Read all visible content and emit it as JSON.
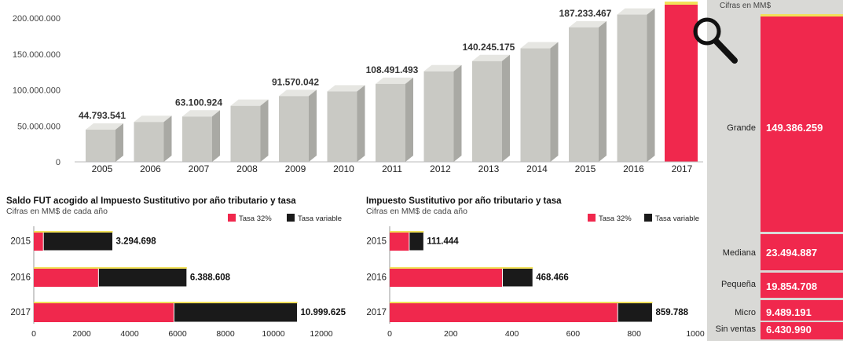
{
  "colors": {
    "red": "#f0284d",
    "black": "#1a1a1a",
    "gray_bar": "#c9c9c4",
    "panel_bg": "#d9d9d6",
    "highlight": "#f2e15a"
  },
  "icons": {
    "magnifier": "magnifier-icon"
  },
  "chart_data": [
    {
      "type": "bar",
      "categories": [
        "2005",
        "2006",
        "2007",
        "2008",
        "2009",
        "2010",
        "2011",
        "2012",
        "2013",
        "2014",
        "2015",
        "2016",
        "2017"
      ],
      "values": [
        44793541,
        55500000,
        63100924,
        78000000,
        91570042,
        98000000,
        108491493,
        126000000,
        140245175,
        158000000,
        187233467,
        205000000,
        210000000
      ],
      "data_labels": [
        {
          "category": "2005",
          "text": "44.793.541"
        },
        {
          "category": "2007",
          "text": "63.100.924"
        },
        {
          "category": "2009",
          "text": "91.570.042"
        },
        {
          "category": "2011",
          "text": "108.491.493"
        },
        {
          "category": "2013",
          "text": "140.245.175"
        },
        {
          "category": "2015",
          "text": "187.233.467"
        }
      ],
      "highlight_category": "2017",
      "yticks": [
        "0",
        "50.000.000",
        "100.000.000",
        "150.000.000",
        "200.000.000"
      ],
      "ylim": [
        0,
        210000000
      ]
    },
    {
      "type": "bar",
      "orientation": "horizontal",
      "subtitle": "Cifras en MM$",
      "categories": [
        "Grande",
        "Mediana",
        "Pequeña",
        "Micro",
        "Sin ventas"
      ],
      "values": [
        149386259,
        23494887,
        19854708,
        9489191,
        6430990
      ],
      "value_labels": [
        "149.386.259",
        "23.494.887",
        "19.854.708",
        "9.489.191",
        "6.430.990"
      ]
    },
    {
      "type": "bar",
      "stacked": true,
      "orientation": "horizontal",
      "title": "Saldo FUT acogido al Impuesto Sustitutivo por año tributario y tasa",
      "subtitle": "Cifras en MM$ de cada año",
      "categories": [
        "2015",
        "2016",
        "2017"
      ],
      "series": [
        {
          "name": "Tasa 32%",
          "values": [
            400,
            2700,
            5850
          ]
        },
        {
          "name": "Tasa variable",
          "values": [
            2894.698,
            3688.608,
            5149.625
          ]
        }
      ],
      "totals": [
        "3.294.698",
        "6.388.608",
        "10.999.625"
      ],
      "xticks": [
        "0",
        "2000",
        "4000",
        "6000",
        "8000",
        "10000",
        "12000"
      ],
      "xlim": [
        0,
        12000
      ]
    },
    {
      "type": "bar",
      "stacked": true,
      "orientation": "horizontal",
      "title": "Impuesto Sustitutivo por año tributario y tasa",
      "subtitle": "Cifras en MM$ de cada año",
      "categories": [
        "2015",
        "2016",
        "2017"
      ],
      "series": [
        {
          "name": "Tasa 32%",
          "values": [
            64,
            369,
            746
          ]
        },
        {
          "name": "Tasa variable",
          "values": [
            47.444,
            99.466,
            113.788
          ]
        }
      ],
      "totals": [
        "111.444",
        "468.466",
        "859.788"
      ],
      "xticks": [
        "0",
        "200",
        "400",
        "600",
        "800",
        "1000"
      ],
      "xlim": [
        0,
        1000
      ]
    }
  ]
}
